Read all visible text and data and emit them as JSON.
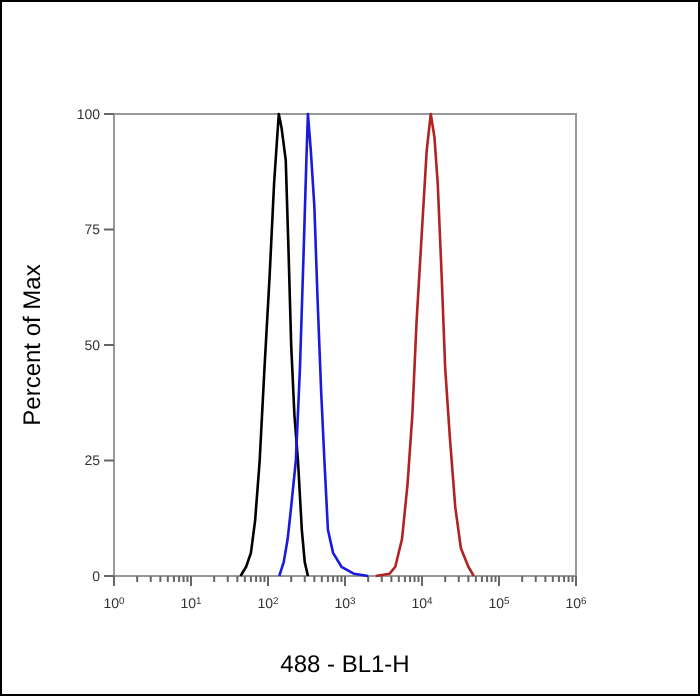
{
  "chart_data": {
    "type": "line",
    "xlabel": "488 - BL1-H",
    "ylabel": "Percent of Max",
    "log": "x",
    "grid": false,
    "marker": "none",
    "line_style": "solid",
    "xlim": [
      1,
      1000000
    ],
    "xticks": [
      {
        "value": 1,
        "label": "10$^{0}$"
      },
      {
        "value": 2,
        "label": null
      },
      {
        "value": 3,
        "label": null
      },
      {
        "value": 4,
        "label": null
      },
      {
        "value": 5,
        "label": null
      },
      {
        "value": 6,
        "label": null
      },
      {
        "value": 7,
        "label": null
      },
      {
        "value": 8,
        "label": null
      },
      {
        "value": 9,
        "label": null
      },
      {
        "value": 10,
        "label": "10$^{1}$"
      },
      {
        "value": 20,
        "label": null
      },
      {
        "value": 30,
        "label": null
      },
      {
        "value": 40,
        "label": null
      },
      {
        "value": 50,
        "label": null
      },
      {
        "value": 60,
        "label": null
      },
      {
        "value": 70,
        "label": null
      },
      {
        "value": 80,
        "label": null
      },
      {
        "value": 90,
        "label": null
      },
      {
        "value": 100,
        "label": "10$^{2}$"
      },
      {
        "value": 200,
        "label": null
      },
      {
        "value": 300,
        "label": null
      },
      {
        "value": 400,
        "label": null
      },
      {
        "value": 500,
        "label": null
      },
      {
        "value": 600,
        "label": null
      },
      {
        "value": 700,
        "label": null
      },
      {
        "value": 800,
        "label": null
      },
      {
        "value": 900,
        "label": null
      },
      {
        "value": 1000,
        "label": "10$^{3}$"
      },
      {
        "value": 2000,
        "label": null
      },
      {
        "value": 3000,
        "label": null
      },
      {
        "value": 4000,
        "label": null
      },
      {
        "value": 5000,
        "label": null
      },
      {
        "value": 6000,
        "label": null
      },
      {
        "value": 7000,
        "label": null
      },
      {
        "value": 8000,
        "label": null
      },
      {
        "value": 9000,
        "label": null
      },
      {
        "value": 10000,
        "label": "10$^{4}$"
      },
      {
        "value": 20000,
        "label": null
      },
      {
        "value": 30000,
        "label": null
      },
      {
        "value": 40000,
        "label": null
      },
      {
        "value": 50000,
        "label": null
      },
      {
        "value": 60000,
        "label": null
      },
      {
        "value": 70000,
        "label": null
      },
      {
        "value": 80000,
        "label": null
      },
      {
        "value": 90000,
        "label": null
      },
      {
        "value": 100000,
        "label": "10$^{5}$"
      },
      {
        "value": 200000,
        "label": null
      },
      {
        "value": 300000,
        "label": null
      },
      {
        "value": 400000,
        "label": null
      },
      {
        "value": 500000,
        "label": null
      },
      {
        "value": 600000,
        "label": null
      },
      {
        "value": 700000,
        "label": null
      },
      {
        "value": 800000,
        "label": null
      },
      {
        "value": 900000,
        "label": null
      },
      {
        "value": 1000000,
        "label": "10$^{6}$"
      }
    ],
    "ylim": [
      0,
      100
    ],
    "yticks": [
      0,
      25,
      50,
      75,
      100
    ],
    "series": [
      {
        "color": "#000000",
        "x": [
          44,
          52,
          60,
          68,
          78,
          90,
          105,
          120,
          138,
          150,
          170,
          185,
          200,
          220,
          245,
          275,
          300,
          330
        ],
        "values": [
          0,
          2,
          5,
          12,
          25,
          45,
          65,
          85,
          100,
          97,
          90,
          70,
          50,
          35,
          25,
          10,
          3,
          0
        ]
      },
      {
        "color": "#1a1adc",
        "x": [
          140,
          160,
          180,
          200,
          230,
          260,
          290,
          315,
          330,
          360,
          400,
          440,
          490,
          540,
          600,
          700,
          900,
          1300,
          2000
        ],
        "values": [
          0,
          3,
          8,
          15,
          25,
          45,
          70,
          90,
          100,
          92,
          80,
          60,
          40,
          25,
          10,
          5,
          2,
          0.5,
          0
        ]
      },
      {
        "color": "#b22222",
        "x": [
          2500,
          3800,
          4500,
          5500,
          6500,
          7500,
          8500,
          10000,
          11500,
          13000,
          14500,
          16000,
          18000,
          20000,
          23000,
          27000,
          32000,
          40000,
          47000
        ],
        "values": [
          0,
          0.5,
          2,
          8,
          20,
          35,
          55,
          75,
          92,
          100,
          95,
          85,
          65,
          45,
          30,
          15,
          6,
          2,
          0
        ]
      }
    ]
  }
}
